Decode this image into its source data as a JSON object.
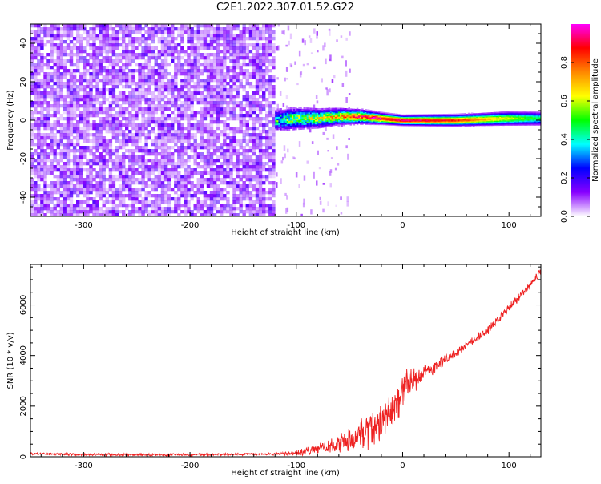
{
  "title": "C2E1.2022.307.01.52.G22",
  "chart_data": [
    {
      "type": "heatmap",
      "xlabel": "Height of straight line (km)",
      "ylabel": "Frequency (Hz)",
      "xlim": [
        -350,
        130
      ],
      "ylim": [
        -50,
        50
      ],
      "xticks": [
        -300,
        -200,
        -100,
        0,
        100
      ],
      "yticks": [
        -40,
        -20,
        0,
        20,
        40
      ],
      "noise_region_x": [
        -350,
        -120
      ],
      "signal_start_x": -120,
      "signal_track": [
        {
          "x": -120,
          "center_hz": 0,
          "width_hz": 8,
          "amplitude": 0.35
        },
        {
          "x": -100,
          "center_hz": 1,
          "width_hz": 8,
          "amplitude": 0.45
        },
        {
          "x": -80,
          "center_hz": 1,
          "width_hz": 7,
          "amplitude": 0.5
        },
        {
          "x": -60,
          "center_hz": 2,
          "width_hz": 6,
          "amplitude": 0.6
        },
        {
          "x": -40,
          "center_hz": 2,
          "width_hz": 5,
          "amplitude": 0.75
        },
        {
          "x": -20,
          "center_hz": 1,
          "width_hz": 4,
          "amplitude": 0.85
        },
        {
          "x": 0,
          "center_hz": 0,
          "width_hz": 3.5,
          "amplitude": 0.95
        },
        {
          "x": 50,
          "center_hz": 0,
          "width_hz": 4,
          "amplitude": 0.85
        },
        {
          "x": 100,
          "center_hz": 1,
          "width_hz": 5,
          "amplitude": 0.6
        },
        {
          "x": 130,
          "center_hz": 1,
          "width_hz": 5,
          "amplitude": 0.45
        }
      ],
      "colorbar": {
        "label": "Normalized spectral amplitude",
        "range": [
          0,
          1
        ],
        "ticks": [
          "0.0",
          "0.2",
          "0.4",
          "0.6",
          "0.8"
        ],
        "colors": [
          "#ffffff",
          "#8800ff",
          "#0000ff",
          "#00ffff",
          "#00ff00",
          "#ffff00",
          "#ff8800",
          "#ff0000",
          "#ff00ff"
        ]
      }
    },
    {
      "type": "line",
      "xlabel": "Height of straight line (km)",
      "ylabel": "SNR (10 * v/v)",
      "xlim": [
        -350,
        130
      ],
      "ylim": [
        0,
        7600
      ],
      "xticks": [
        -300,
        -200,
        -100,
        0,
        100
      ],
      "yticks": [
        0,
        2000,
        4000,
        6000
      ],
      "series": [
        {
          "color": "#ee2222",
          "x": [
            -350,
            -300,
            -250,
            -200,
            -150,
            -120,
            -100,
            -80,
            -60,
            -50,
            -40,
            -30,
            -20,
            -10,
            0,
            10,
            20,
            40,
            60,
            80,
            100,
            120,
            130
          ],
          "y": [
            120,
            90,
            80,
            85,
            100,
            110,
            150,
            300,
            500,
            700,
            900,
            1000,
            1400,
            1800,
            2600,
            3000,
            3300,
            3800,
            4400,
            5000,
            5900,
            6800,
            7300
          ],
          "noise": [
            60,
            60,
            60,
            60,
            60,
            60,
            120,
            250,
            450,
            600,
            750,
            850,
            900,
            900,
            900,
            600,
            350,
            250,
            200,
            200,
            200,
            200,
            200
          ]
        }
      ]
    }
  ]
}
